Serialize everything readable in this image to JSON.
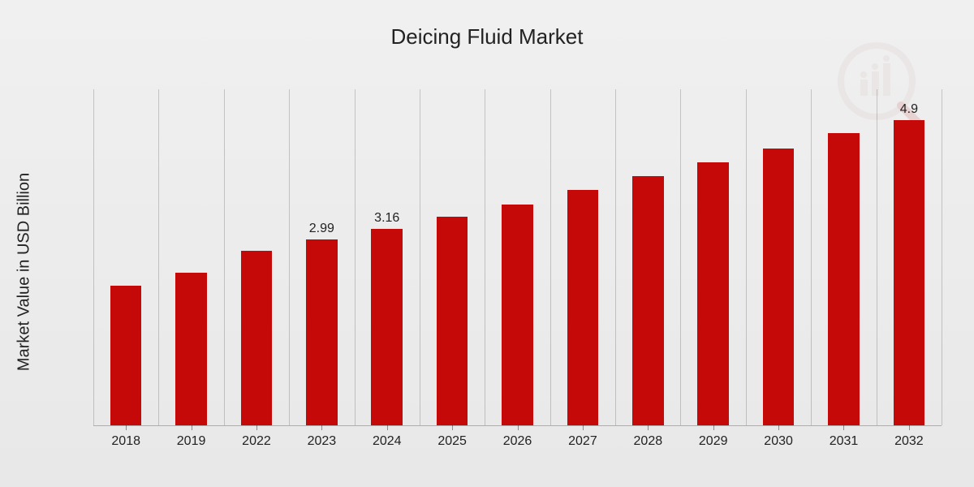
{
  "title": "Deicing Fluid Market",
  "ylabel": "Market Value in USD Billion",
  "chart": {
    "type": "bar",
    "categories": [
      "2018",
      "2019",
      "2022",
      "2023",
      "2024",
      "2025",
      "2026",
      "2027",
      "2028",
      "2029",
      "2030",
      "2031",
      "2032"
    ],
    "values": [
      2.25,
      2.45,
      2.8,
      2.99,
      3.16,
      3.35,
      3.55,
      3.78,
      4.0,
      4.22,
      4.45,
      4.7,
      4.9
    ],
    "value_labels": [
      "",
      "",
      "",
      "2.99",
      "3.16",
      "",
      "",
      "",
      "",
      "",
      "",
      "",
      "4.9"
    ],
    "y_max": 5.4,
    "bar_color": "#c50909",
    "grid_color": "rgba(0,0,0,0.18)",
    "title_fontsize": 26,
    "label_fontsize": 20,
    "tick_fontsize": 16,
    "background": "linear-gradient(#f0f0f0,#e8e8e8)",
    "bar_width_pct": 48
  },
  "watermark": {
    "circle_color": "#e8d6d6",
    "bar_color": "#c9a8a8",
    "handle_color": "#c50909"
  }
}
